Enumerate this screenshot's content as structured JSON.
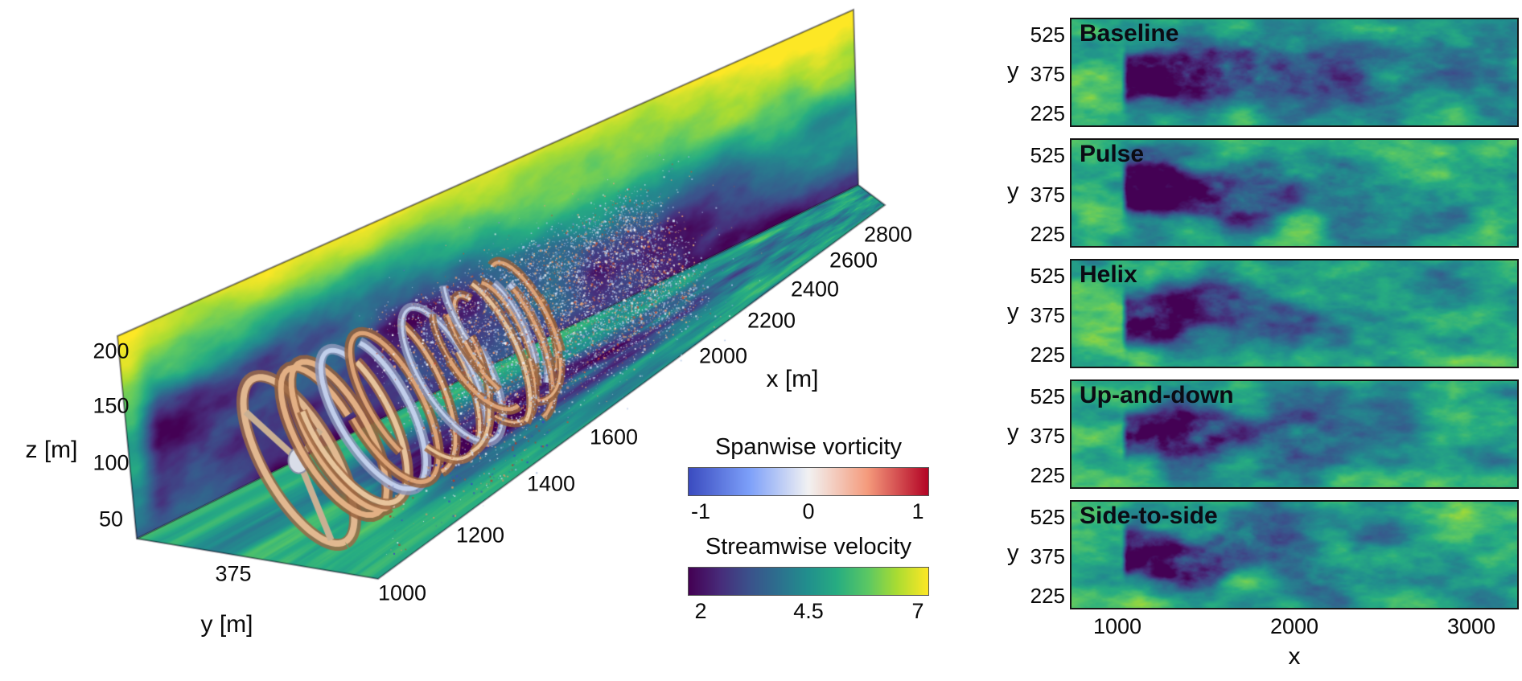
{
  "left_view": {
    "x_axis": {
      "label": "x [m]",
      "ticks": [
        "1000",
        "1200",
        "1400",
        "1600",
        "2000",
        "2200",
        "2400",
        "2600",
        "2800"
      ]
    },
    "y_axis": {
      "label": "y [m]",
      "ticks": [
        "375"
      ]
    },
    "z_axis": {
      "label": "z [m]",
      "ticks": [
        "200",
        "150",
        "100",
        "50"
      ]
    },
    "colorbars": {
      "vorticity": {
        "title": "Spanwise vorticity",
        "ticks": [
          "-1",
          "0",
          "1"
        ]
      },
      "velocity": {
        "title": "Streamwise velocity",
        "ticks": [
          "2",
          "4.5",
          "7"
        ]
      }
    }
  },
  "panels": {
    "labels": [
      "Baseline",
      "Pulse",
      "Helix",
      "Up-and-down",
      "Side-to-side"
    ],
    "y_label": "y",
    "y_ticks": [
      "525",
      "375",
      "225"
    ],
    "x_label": "x",
    "x_ticks": [
      "1000",
      "2000",
      "3000"
    ]
  },
  "chart_data": [
    {
      "type": "heatmap",
      "subtype": "3d-perspective-scene",
      "title": "Instantaneous wind-turbine wake: vortical structures over streamwise-velocity planes",
      "axes": {
        "x": {
          "label": "x [m]",
          "ticks": [
            1000,
            1200,
            1400,
            1600,
            2000,
            2200,
            2400,
            2600,
            2800
          ],
          "range": [
            1000,
            2900
          ]
        },
        "y": {
          "label": "y [m]",
          "ticks": [
            375
          ],
          "range": [
            0,
            750
          ]
        },
        "z": {
          "label": "z [m]",
          "ticks": [
            50,
            100,
            150,
            200
          ],
          "range": [
            0,
            215
          ]
        }
      },
      "colorbars": [
        {
          "title": "Spanwise vorticity",
          "ticks": [
            -1,
            0,
            1
          ],
          "range": [
            -1,
            1
          ],
          "colormap": "blue-white-red",
          "stops": [
            "#3b4cc0",
            "#7c9ff9",
            "#f2f2f2",
            "#f49a7b",
            "#b40426"
          ]
        },
        {
          "title": "Streamwise velocity",
          "ticks": [
            2,
            4.5,
            7
          ],
          "range": [
            2,
            7
          ],
          "colormap": "viridis",
          "stops": [
            "#440154",
            "#3b518b",
            "#21918c",
            "#5cc863",
            "#fde725"
          ]
        }
      ],
      "content": "Helical vortex coils shed from the rotor near x=1100 break down into fine-scale turbulence downstream; vertical x-z plane and ground x-y plane are colored by streamwise velocity with a dark low-speed wake embedded in high-speed yellow flow"
    },
    {
      "type": "heatmap",
      "subtype": "horizontal-slices",
      "title": "Hub-height streamwise velocity for five control strategies",
      "panels": [
        "Baseline",
        "Pulse",
        "Helix",
        "Up-and-down",
        "Side-to-side"
      ],
      "x": {
        "label": "x",
        "ticks": [
          1000,
          2000,
          3000
        ],
        "range": [
          730,
          3270
        ]
      },
      "y": {
        "label": "y",
        "ticks": [
          225,
          375,
          525
        ],
        "range": [
          165,
          585
        ]
      },
      "value": {
        "name": "Streamwise velocity",
        "range": [
          2,
          7
        ],
        "colormap": "viridis"
      },
      "content": "Dark low-velocity wake starts near x=1000 centered at y=375 and recovers downstream; wake length, width and meandering differ between the five control strategies"
    }
  ]
}
